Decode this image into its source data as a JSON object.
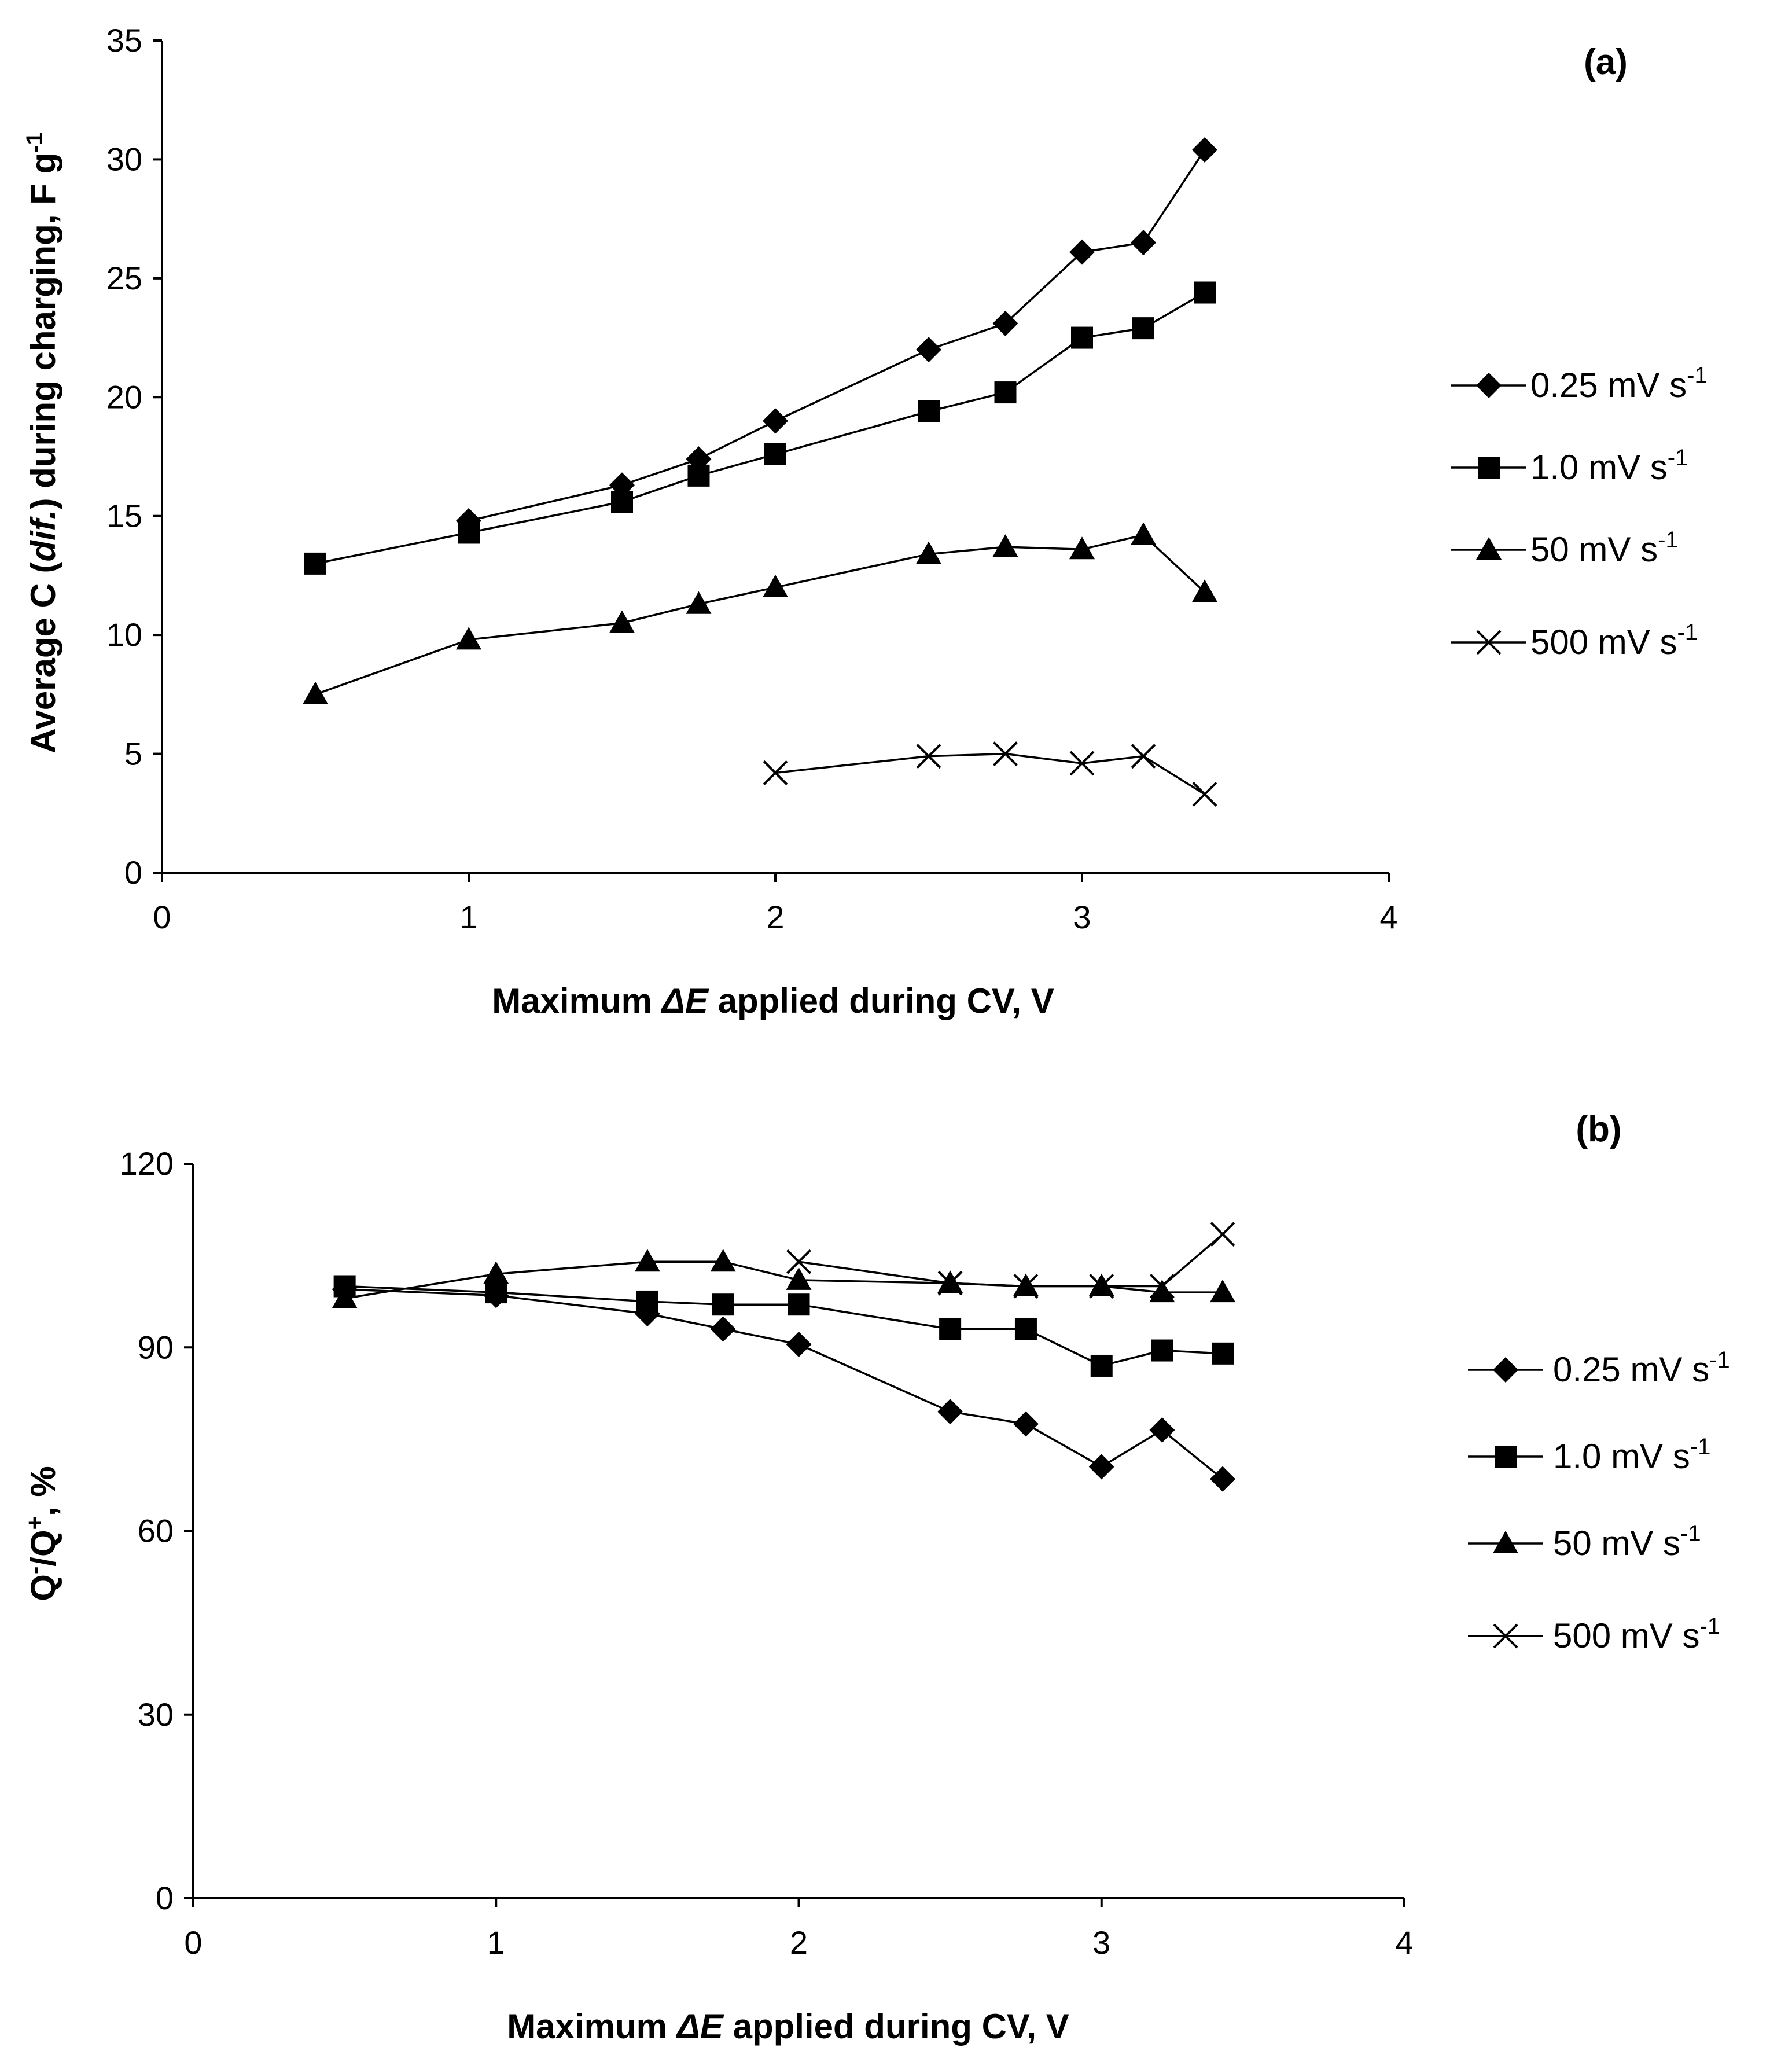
{
  "chart_data": [
    {
      "type": "line",
      "panel_label": "(a)",
      "xlabel_prefix": "Maximum ",
      "xlabel_delta": "ΔE",
      "xlabel_suffix": " applied during CV, V",
      "ylabel_prefix": "Average C (",
      "ylabel_italic": "dif.",
      "ylabel_suffix": ") during charging, F g",
      "ylabel_sup": "-1",
      "xlim": [
        0,
        4
      ],
      "ylim": [
        0,
        35
      ],
      "xticks": [
        0,
        1,
        2,
        3,
        4
      ],
      "yticks": [
        0,
        5,
        10,
        15,
        20,
        25,
        30,
        35
      ],
      "grid": false,
      "legend_position": "right",
      "series": [
        {
          "name": "0.25 mV s",
          "unit_sup": "-1",
          "marker": "diamond",
          "x": [
            1,
            1.5,
            1.75,
            2,
            2.5,
            2.75,
            3,
            3.2,
            3.4
          ],
          "values": [
            14.8,
            16.3,
            17.4,
            19.0,
            22.0,
            23.1,
            26.1,
            26.5,
            30.4
          ]
        },
        {
          "name": "1.0 mV s",
          "unit_sup": "-1",
          "marker": "square",
          "x": [
            0.5,
            1,
            1.5,
            1.75,
            2,
            2.5,
            2.75,
            3,
            3.2,
            3.4
          ],
          "values": [
            13.0,
            14.3,
            15.6,
            16.7,
            17.6,
            19.4,
            20.2,
            22.5,
            22.9,
            24.4
          ]
        },
        {
          "name": "50 mV s",
          "unit_sup": "-1",
          "marker": "triangle",
          "x": [
            0.5,
            1,
            1.5,
            1.75,
            2,
            2.5,
            2.75,
            3,
            3.2,
            3.4
          ],
          "values": [
            7.5,
            9.8,
            10.5,
            11.3,
            12.0,
            13.4,
            13.7,
            13.6,
            14.2,
            11.8
          ]
        },
        {
          "name": "500 mV s",
          "unit_sup": "-1",
          "marker": "x",
          "x": [
            2,
            2.5,
            2.75,
            3,
            3.2,
            3.4
          ],
          "values": [
            4.2,
            4.9,
            5.0,
            4.6,
            4.9,
            3.3
          ]
        }
      ]
    },
    {
      "type": "line",
      "panel_label": "(b)",
      "xlabel_prefix": "Maximum ",
      "xlabel_delta": "ΔE",
      "xlabel_suffix": "  applied during CV, V",
      "ylabel_q1": "Q",
      "ylabel_sup1": "-",
      "ylabel_q2": "/Q",
      "ylabel_sup2": "+",
      "ylabel_suffix": ", %",
      "xlim": [
        0,
        4
      ],
      "ylim": [
        0,
        120
      ],
      "xticks": [
        0,
        1,
        2,
        3,
        4
      ],
      "yticks": [
        0,
        30,
        60,
        90,
        120
      ],
      "grid": false,
      "legend_position": "right",
      "series": [
        {
          "name": "0.25 mV  s",
          "unit_sup": "-1",
          "marker": "diamond",
          "x": [
            0.5,
            1,
            1.5,
            1.75,
            2,
            2.5,
            2.75,
            3,
            3.2,
            3.4
          ],
          "values": [
            99.5,
            98.5,
            95.5,
            93.0,
            90.5,
            79.5,
            77.5,
            70.5,
            76.5,
            68.5
          ]
        },
        {
          "name": "1.0 mV  s",
          "unit_sup": "-1",
          "marker": "square",
          "x": [
            0.5,
            1,
            1.5,
            1.75,
            2,
            2.5,
            2.75,
            3,
            3.2,
            3.4
          ],
          "values": [
            100.0,
            99.0,
            97.5,
            97.0,
            97.0,
            93.0,
            93.0,
            87.0,
            89.5,
            89.0
          ]
        },
        {
          "name": "50 mV  s",
          "unit_sup": "-1",
          "marker": "triangle",
          "x": [
            0.5,
            1,
            1.5,
            1.75,
            2,
            2.5,
            2.75,
            3,
            3.2,
            3.4
          ],
          "values": [
            98.0,
            102.0,
            104.0,
            104.0,
            101.0,
            100.5,
            100.0,
            100.0,
            99.0,
            99.0
          ]
        },
        {
          "name": "500 mV  s",
          "unit_sup": "-1",
          "marker": "x",
          "x": [
            2,
            2.5,
            2.75,
            3,
            3.2,
            3.4
          ],
          "values": [
            104.0,
            100.5,
            100.0,
            100.0,
            100.0,
            108.5
          ]
        }
      ]
    }
  ]
}
